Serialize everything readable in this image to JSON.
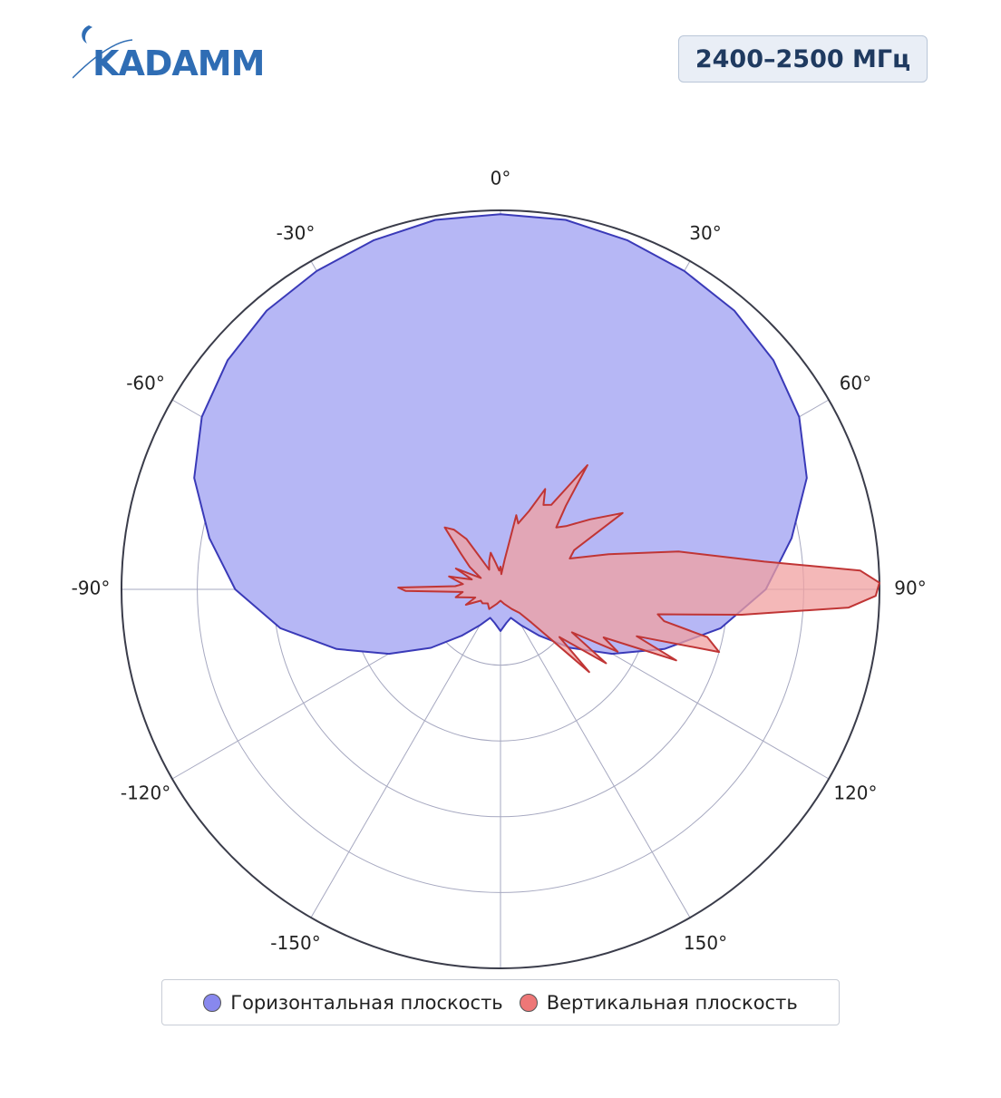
{
  "brand": {
    "name": "KADAMM"
  },
  "badge": {
    "frequency": "2400–2500 МГц"
  },
  "legend": {
    "items": [
      {
        "label": "Горизонтальная плоскость",
        "color": "#8888ee"
      },
      {
        "label": "Вертикальная плоскость",
        "color": "#ee7777"
      }
    ]
  },
  "colors": {
    "horizontal_fill": "#b6b7f5",
    "horizontal_line": "#3a3ab8",
    "vertical_fill": "#f0a0a0",
    "vertical_line": "#c03535",
    "grid": "#a6a8c0",
    "outer_ring": "#3a3c4a"
  },
  "chart_data": {
    "type": "polar",
    "title": "",
    "angular_axis": {
      "direction": "clockwise",
      "zero": "top",
      "tick_labels": [
        "0°",
        "30°",
        "60°",
        "90°",
        "120°",
        "150°",
        "-150°",
        "-120°",
        "-90°",
        "-60°",
        "-30°"
      ],
      "tick_angles": [
        0,
        30,
        60,
        90,
        120,
        150,
        -150,
        -120,
        -90,
        -60,
        -30
      ]
    },
    "radial_axis": {
      "range": [
        0,
        1
      ],
      "rings": [
        0.2,
        0.4,
        0.6,
        0.8,
        1.0
      ],
      "tick_labels_shown": false
    },
    "legend_position": "bottom",
    "series": [
      {
        "name": "Горизонтальная плоскость",
        "points": [
          [
            0,
            0.99
          ],
          [
            10,
            0.99
          ],
          [
            20,
            0.98
          ],
          [
            30,
            0.97
          ],
          [
            40,
            0.96
          ],
          [
            50,
            0.94
          ],
          [
            60,
            0.91
          ],
          [
            70,
            0.86
          ],
          [
            80,
            0.78
          ],
          [
            90,
            0.7
          ],
          [
            100,
            0.59
          ],
          [
            110,
            0.46
          ],
          [
            120,
            0.34
          ],
          [
            130,
            0.24
          ],
          [
            140,
            0.16
          ],
          [
            150,
            0.11
          ],
          [
            160,
            0.08
          ],
          [
            170,
            0.09
          ],
          [
            180,
            0.11
          ],
          [
            190,
            0.09
          ],
          [
            200,
            0.08
          ],
          [
            210,
            0.11
          ],
          [
            220,
            0.16
          ],
          [
            230,
            0.24
          ],
          [
            240,
            0.34
          ],
          [
            250,
            0.46
          ],
          [
            260,
            0.59
          ],
          [
            270,
            0.7
          ],
          [
            280,
            0.78
          ],
          [
            290,
            0.86
          ],
          [
            300,
            0.91
          ],
          [
            310,
            0.94
          ],
          [
            320,
            0.96
          ],
          [
            330,
            0.97
          ],
          [
            340,
            0.98
          ],
          [
            350,
            0.99
          ]
        ]
      },
      {
        "name": "Вертикальная плоскость",
        "points": [
          [
            0,
            0.06
          ],
          [
            3,
            0.04
          ],
          [
            8,
            0.08
          ],
          [
            12,
            0.2
          ],
          [
            15,
            0.18
          ],
          [
            20,
            0.22
          ],
          [
            24,
            0.29
          ],
          [
            27,
            0.25
          ],
          [
            31,
            0.26
          ],
          [
            35,
            0.4
          ],
          [
            38,
            0.28
          ],
          [
            42,
            0.22
          ],
          [
            46,
            0.24
          ],
          [
            52,
            0.3
          ],
          [
            58,
            0.38
          ],
          [
            62,
            0.22
          ],
          [
            66,
            0.2
          ],
          [
            72,
            0.3
          ],
          [
            78,
            0.48
          ],
          [
            84,
            0.7
          ],
          [
            87,
            0.95
          ],
          [
            89,
            1.0
          ],
          [
            91,
            0.99
          ],
          [
            93,
            0.92
          ],
          [
            96,
            0.64
          ],
          [
            99,
            0.42
          ],
          [
            101,
            0.44
          ],
          [
            103,
            0.56
          ],
          [
            106,
            0.6
          ],
          [
            109,
            0.38
          ],
          [
            112,
            0.5
          ],
          [
            115,
            0.3
          ],
          [
            118,
            0.35
          ],
          [
            121,
            0.22
          ],
          [
            125,
            0.34
          ],
          [
            129,
            0.2
          ],
          [
            133,
            0.32
          ],
          [
            137,
            0.12
          ],
          [
            141,
            0.08
          ],
          [
            150,
            0.06
          ],
          [
            165,
            0.04
          ],
          [
            180,
            0.03
          ],
          [
            195,
            0.04
          ],
          [
            210,
            0.06
          ],
          [
            222,
            0.05
          ],
          [
            232,
            0.06
          ],
          [
            240,
            0.06
          ],
          [
            246,
            0.1
          ],
          [
            252,
            0.07
          ],
          [
            260,
            0.12
          ],
          [
            266,
            0.1
          ],
          [
            269,
            0.25
          ],
          [
            271,
            0.27
          ],
          [
            274,
            0.12
          ],
          [
            278,
            0.1
          ],
          [
            284,
            0.14
          ],
          [
            289,
            0.08
          ],
          [
            295,
            0.13
          ],
          [
            300,
            0.06
          ],
          [
            306,
            0.1
          ],
          [
            312,
            0.14
          ],
          [
            318,
            0.22
          ],
          [
            322,
            0.2
          ],
          [
            326,
            0.16
          ],
          [
            330,
            0.06
          ],
          [
            338,
            0.08
          ],
          [
            345,
            0.1
          ],
          [
            350,
            0.07
          ],
          [
            356,
            0.05
          ]
        ]
      }
    ]
  }
}
